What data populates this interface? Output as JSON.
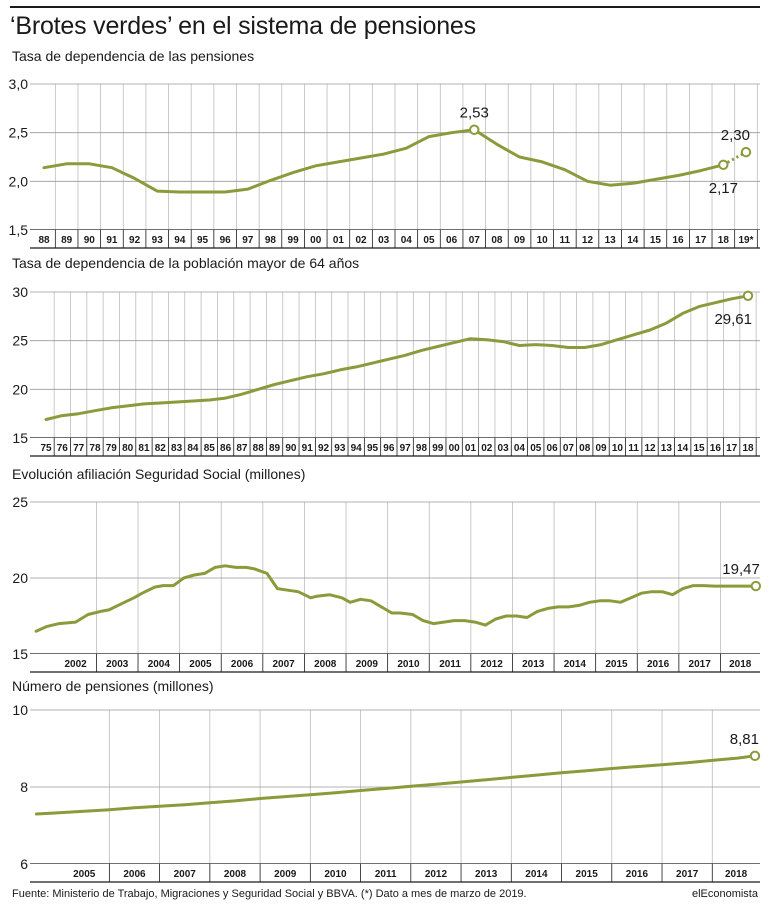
{
  "title": "‘Brotes verdes’ en el sistema de pensiones",
  "footer": "Fuente: Ministerio de Trabajo, Migraciones y Seguridad Social y BBVA. (*) Dato a mes de marzo de 2019.",
  "brand": "elEconomista",
  "colors": {
    "line": "#8b9a3b",
    "grid": "#bdbdbd",
    "axis": "#1a1a1a",
    "text": "#1a1a1a"
  },
  "chart_data": [
    {
      "type": "line",
      "title": "Tasa de dependencia de las pensiones",
      "ylim": [
        1.5,
        3.0
      ],
      "yticks": [
        "1,5",
        "2,0",
        "2,5",
        "3,0"
      ],
      "ytick_values": [
        1.5,
        2.0,
        2.5,
        3.0
      ],
      "categories": [
        "88",
        "89",
        "90",
        "91",
        "92",
        "93",
        "94",
        "95",
        "96",
        "97",
        "98",
        "99",
        "00",
        "01",
        "02",
        "03",
        "04",
        "05",
        "06",
        "07",
        "08",
        "09",
        "10",
        "11",
        "12",
        "13",
        "14",
        "15",
        "16",
        "17",
        "18",
        "19*"
      ],
      "values": [
        2.14,
        2.18,
        2.18,
        2.14,
        2.03,
        1.9,
        1.89,
        1.89,
        1.89,
        1.92,
        2.01,
        2.09,
        2.16,
        2.2,
        2.24,
        2.28,
        2.34,
        2.46,
        2.5,
        2.53,
        2.38,
        2.25,
        2.2,
        2.12,
        2.0,
        1.96,
        1.98,
        2.02,
        2.06,
        2.11,
        2.17,
        2.3
      ],
      "dotted_last": true,
      "annotations": [
        {
          "index": 19,
          "text": "2,53",
          "pos": "above"
        },
        {
          "index": 30,
          "text": "2,17",
          "pos": "below"
        },
        {
          "index": 31,
          "text": "2,30",
          "pos": "above"
        }
      ],
      "grid": true
    },
    {
      "type": "line",
      "title": "Tasa de dependencia de la población mayor de 64 años",
      "ylim": [
        15,
        30
      ],
      "yticks": [
        "15",
        "20",
        "25",
        "30"
      ],
      "ytick_values": [
        15,
        20,
        25,
        30
      ],
      "categories": [
        "75",
        "76",
        "77",
        "78",
        "79",
        "80",
        "81",
        "82",
        "83",
        "84",
        "85",
        "86",
        "87",
        "88",
        "89",
        "90",
        "91",
        "92",
        "93",
        "94",
        "95",
        "96",
        "97",
        "98",
        "99",
        "00",
        "01",
        "02",
        "03",
        "04",
        "05",
        "06",
        "07",
        "08",
        "09",
        "10",
        "11",
        "12",
        "13",
        "14",
        "15",
        "16",
        "17",
        "18"
      ],
      "values": [
        16.9,
        17.3,
        17.5,
        17.8,
        18.1,
        18.3,
        18.5,
        18.6,
        18.7,
        18.8,
        18.9,
        19.1,
        19.5,
        20.0,
        20.5,
        20.9,
        21.3,
        21.6,
        22.0,
        22.3,
        22.7,
        23.1,
        23.5,
        24.0,
        24.4,
        24.8,
        25.2,
        25.1,
        24.9,
        24.5,
        24.6,
        24.5,
        24.3,
        24.3,
        24.6,
        25.1,
        25.6,
        26.1,
        26.8,
        27.8,
        28.5,
        28.9,
        29.3,
        29.61
      ],
      "dotted_last": false,
      "annotations": [
        {
          "index": 43,
          "text": "29,61",
          "pos": "below"
        }
      ],
      "grid": true
    },
    {
      "type": "line",
      "title": "Evolución afiliación Seguridad Social (millones)",
      "ylim": [
        15,
        25
      ],
      "yticks": [
        "15",
        "20",
        "25"
      ],
      "ytick_values": [
        15,
        20,
        25
      ],
      "categories": [
        "2002",
        "2003",
        "2004",
        "2005",
        "2006",
        "2007",
        "2008",
        "2009",
        "2010",
        "2011",
        "2012",
        "2013",
        "2014",
        "2015",
        "2016",
        "2017",
        "2018"
      ],
      "x": [
        2001.55,
        2001.8,
        2002.1,
        2002.5,
        2002.8,
        2003.1,
        2003.3,
        2003.6,
        2003.9,
        2004.1,
        2004.4,
        2004.6,
        2004.85,
        2005.1,
        2005.35,
        2005.6,
        2005.85,
        2006.1,
        2006.35,
        2006.6,
        2006.8,
        2007.1,
        2007.35,
        2007.6,
        2007.85,
        2008.0,
        2008.15,
        2008.3,
        2008.6,
        2008.9,
        2009.1,
        2009.35,
        2009.6,
        2009.85,
        2010.1,
        2010.3,
        2010.6,
        2010.85,
        2011.1,
        2011.35,
        2011.6,
        2011.85,
        2012.1,
        2012.35,
        2012.6,
        2012.85,
        2013.1,
        2013.35,
        2013.6,
        2013.85,
        2014.1,
        2014.35,
        2014.6,
        2014.85,
        2015.1,
        2015.35,
        2015.6,
        2015.85,
        2016.1,
        2016.35,
        2016.6,
        2016.85,
        2017.1,
        2017.35,
        2017.6,
        2017.85,
        2018.1,
        2018.35,
        2018.6,
        2018.85
      ],
      "values": [
        16.5,
        16.8,
        17.0,
        17.1,
        17.6,
        17.8,
        17.9,
        18.3,
        18.7,
        19.0,
        19.4,
        19.5,
        19.5,
        20.0,
        20.2,
        20.3,
        20.7,
        20.8,
        20.7,
        20.7,
        20.6,
        20.3,
        19.3,
        19.2,
        19.1,
        18.9,
        18.7,
        18.8,
        18.9,
        18.7,
        18.4,
        18.6,
        18.5,
        18.1,
        17.7,
        17.7,
        17.6,
        17.2,
        17.0,
        17.1,
        17.2,
        17.2,
        17.1,
        16.9,
        17.3,
        17.5,
        17.5,
        17.4,
        17.8,
        18.0,
        18.1,
        18.1,
        18.2,
        18.4,
        18.5,
        18.5,
        18.4,
        18.7,
        19.0,
        19.1,
        19.1,
        18.9,
        19.3,
        19.5,
        19.5,
        19.47,
        19.47,
        19.47,
        19.47,
        19.47
      ],
      "xlim": [
        2001.5,
        2018.95
      ],
      "dotted_last": false,
      "annotations": [
        {
          "index": 69,
          "text": "19,47",
          "pos": "above"
        }
      ],
      "grid": true
    },
    {
      "type": "line",
      "title": "Número de pensiones (millones)",
      "ylim": [
        6,
        10
      ],
      "yticks": [
        "6",
        "8",
        "10"
      ],
      "ytick_values": [
        6,
        8,
        10
      ],
      "categories": [
        "2005",
        "2006",
        "2007",
        "2008",
        "2009",
        "2010",
        "2011",
        "2012",
        "2013",
        "2014",
        "2015",
        "2016",
        "2017",
        "2018"
      ],
      "x": [
        2004.55,
        2005.0,
        2005.5,
        2006.0,
        2006.5,
        2007.0,
        2007.5,
        2008.0,
        2008.5,
        2009.0,
        2009.5,
        2010.0,
        2010.5,
        2011.0,
        2011.5,
        2012.0,
        2012.5,
        2013.0,
        2013.5,
        2014.0,
        2014.5,
        2015.0,
        2015.5,
        2016.0,
        2016.5,
        2017.0,
        2017.5,
        2018.0,
        2018.5,
        2018.85
      ],
      "values": [
        7.3,
        7.33,
        7.37,
        7.41,
        7.46,
        7.5,
        7.54,
        7.59,
        7.64,
        7.7,
        7.75,
        7.8,
        7.85,
        7.91,
        7.96,
        8.02,
        8.07,
        8.13,
        8.19,
        8.25,
        8.31,
        8.37,
        8.42,
        8.48,
        8.53,
        8.58,
        8.63,
        8.69,
        8.75,
        8.81
      ],
      "xlim": [
        2004.5,
        2018.95
      ],
      "dotted_last": false,
      "annotations": [
        {
          "index": 29,
          "text": "8,81",
          "pos": "above"
        }
      ],
      "grid": true
    }
  ]
}
